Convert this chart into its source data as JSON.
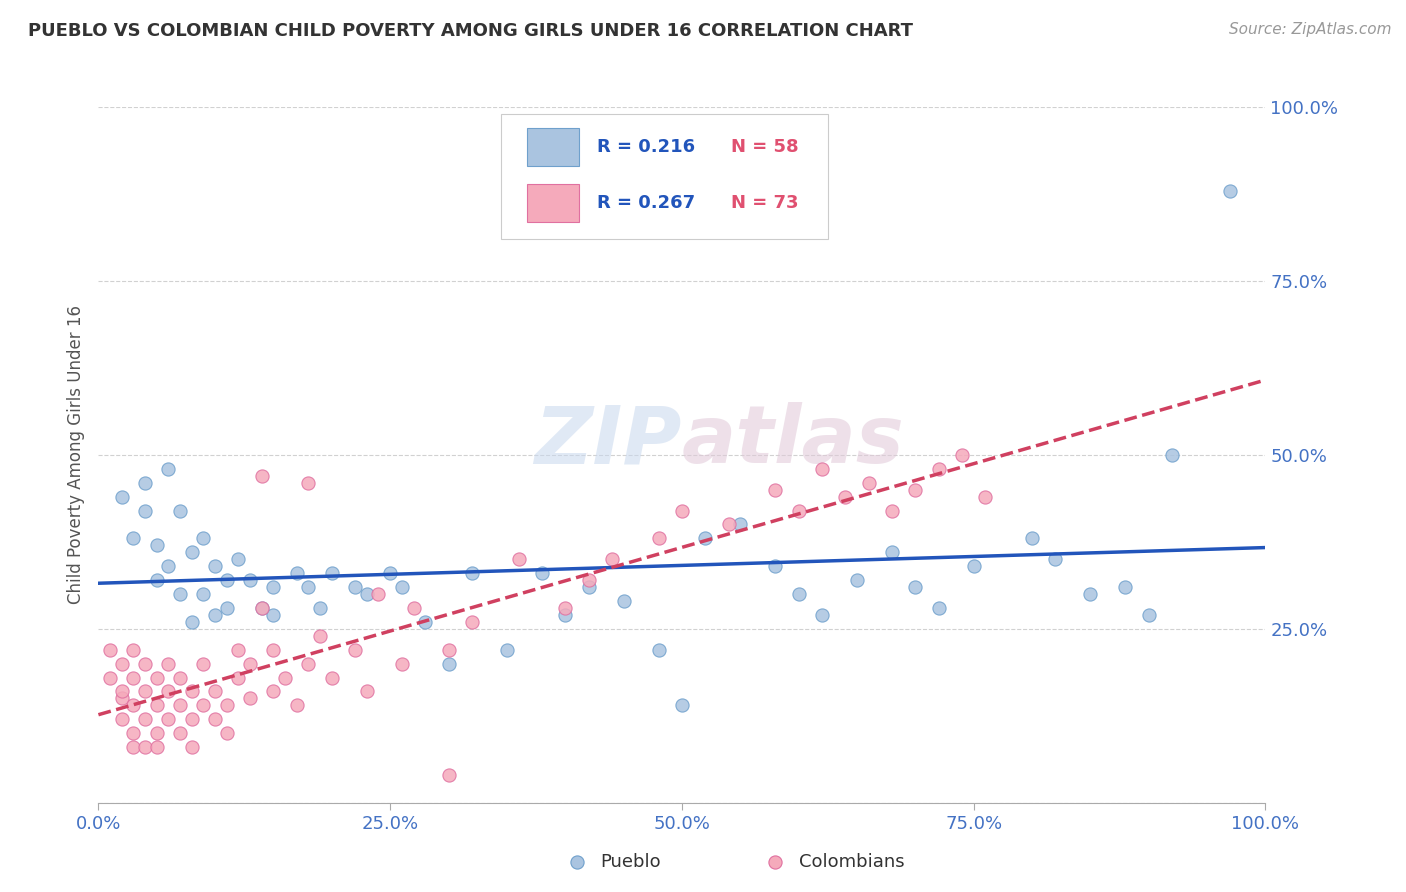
{
  "title": "PUEBLO VS COLOMBIAN CHILD POVERTY AMONG GIRLS UNDER 16 CORRELATION CHART",
  "source": "Source: ZipAtlas.com",
  "ylabel": "Child Poverty Among Girls Under 16",
  "xlim": [
    0.0,
    1.0
  ],
  "ylim": [
    0.0,
    1.0
  ],
  "xtick_vals": [
    0.0,
    0.25,
    0.5,
    0.75,
    1.0
  ],
  "ytick_vals": [
    0.0,
    0.25,
    0.5,
    0.75,
    1.0
  ],
  "pueblo_color": "#aac4e0",
  "colombian_color": "#f5aabb",
  "pueblo_edge": "#6fa0cc",
  "colombian_edge": "#e070a0",
  "trend_pueblo_color": "#2255bb",
  "trend_colombian_color": "#d04060",
  "legend_text_color": "#2255bb",
  "legend_n_color": "#e05070",
  "R_pueblo": 0.216,
  "N_pueblo": 58,
  "R_colombian": 0.267,
  "N_colombian": 73,
  "watermark": "ZIPatlas",
  "pueblo_scatter": [
    [
      0.02,
      0.44
    ],
    [
      0.03,
      0.38
    ],
    [
      0.04,
      0.46
    ],
    [
      0.04,
      0.42
    ],
    [
      0.05,
      0.37
    ],
    [
      0.05,
      0.32
    ],
    [
      0.06,
      0.34
    ],
    [
      0.06,
      0.48
    ],
    [
      0.07,
      0.42
    ],
    [
      0.07,
      0.3
    ],
    [
      0.08,
      0.26
    ],
    [
      0.08,
      0.36
    ],
    [
      0.09,
      0.38
    ],
    [
      0.09,
      0.3
    ],
    [
      0.1,
      0.34
    ],
    [
      0.1,
      0.27
    ],
    [
      0.11,
      0.32
    ],
    [
      0.11,
      0.28
    ],
    [
      0.12,
      0.35
    ],
    [
      0.13,
      0.32
    ],
    [
      0.14,
      0.28
    ],
    [
      0.15,
      0.31
    ],
    [
      0.15,
      0.27
    ],
    [
      0.17,
      0.33
    ],
    [
      0.18,
      0.31
    ],
    [
      0.19,
      0.28
    ],
    [
      0.2,
      0.33
    ],
    [
      0.22,
      0.31
    ],
    [
      0.23,
      0.3
    ],
    [
      0.25,
      0.33
    ],
    [
      0.26,
      0.31
    ],
    [
      0.28,
      0.26
    ],
    [
      0.3,
      0.2
    ],
    [
      0.32,
      0.33
    ],
    [
      0.35,
      0.22
    ],
    [
      0.38,
      0.33
    ],
    [
      0.4,
      0.27
    ],
    [
      0.42,
      0.31
    ],
    [
      0.45,
      0.29
    ],
    [
      0.48,
      0.22
    ],
    [
      0.5,
      0.14
    ],
    [
      0.52,
      0.38
    ],
    [
      0.55,
      0.4
    ],
    [
      0.58,
      0.34
    ],
    [
      0.6,
      0.3
    ],
    [
      0.62,
      0.27
    ],
    [
      0.65,
      0.32
    ],
    [
      0.68,
      0.36
    ],
    [
      0.7,
      0.31
    ],
    [
      0.72,
      0.28
    ],
    [
      0.75,
      0.34
    ],
    [
      0.8,
      0.38
    ],
    [
      0.82,
      0.35
    ],
    [
      0.85,
      0.3
    ],
    [
      0.88,
      0.31
    ],
    [
      0.9,
      0.27
    ],
    [
      0.92,
      0.5
    ],
    [
      0.97,
      0.88
    ]
  ],
  "colombian_scatter": [
    [
      0.01,
      0.18
    ],
    [
      0.01,
      0.22
    ],
    [
      0.02,
      0.15
    ],
    [
      0.02,
      0.2
    ],
    [
      0.02,
      0.12
    ],
    [
      0.02,
      0.16
    ],
    [
      0.03,
      0.18
    ],
    [
      0.03,
      0.14
    ],
    [
      0.03,
      0.1
    ],
    [
      0.03,
      0.22
    ],
    [
      0.03,
      0.08
    ],
    [
      0.04,
      0.16
    ],
    [
      0.04,
      0.12
    ],
    [
      0.04,
      0.08
    ],
    [
      0.04,
      0.2
    ],
    [
      0.05,
      0.14
    ],
    [
      0.05,
      0.18
    ],
    [
      0.05,
      0.1
    ],
    [
      0.05,
      0.08
    ],
    [
      0.06,
      0.12
    ],
    [
      0.06,
      0.16
    ],
    [
      0.06,
      0.2
    ],
    [
      0.07,
      0.14
    ],
    [
      0.07,
      0.1
    ],
    [
      0.07,
      0.18
    ],
    [
      0.08,
      0.12
    ],
    [
      0.08,
      0.16
    ],
    [
      0.08,
      0.08
    ],
    [
      0.09,
      0.14
    ],
    [
      0.09,
      0.2
    ],
    [
      0.1,
      0.12
    ],
    [
      0.1,
      0.16
    ],
    [
      0.11,
      0.1
    ],
    [
      0.11,
      0.14
    ],
    [
      0.12,
      0.18
    ],
    [
      0.12,
      0.22
    ],
    [
      0.13,
      0.15
    ],
    [
      0.13,
      0.2
    ],
    [
      0.14,
      0.28
    ],
    [
      0.14,
      0.47
    ],
    [
      0.15,
      0.22
    ],
    [
      0.15,
      0.16
    ],
    [
      0.16,
      0.18
    ],
    [
      0.17,
      0.14
    ],
    [
      0.18,
      0.2
    ],
    [
      0.18,
      0.46
    ],
    [
      0.19,
      0.24
    ],
    [
      0.2,
      0.18
    ],
    [
      0.22,
      0.22
    ],
    [
      0.23,
      0.16
    ],
    [
      0.24,
      0.3
    ],
    [
      0.26,
      0.2
    ],
    [
      0.27,
      0.28
    ],
    [
      0.3,
      0.22
    ],
    [
      0.32,
      0.26
    ],
    [
      0.36,
      0.35
    ],
    [
      0.4,
      0.28
    ],
    [
      0.42,
      0.32
    ],
    [
      0.44,
      0.35
    ],
    [
      0.48,
      0.38
    ],
    [
      0.5,
      0.42
    ],
    [
      0.54,
      0.4
    ],
    [
      0.58,
      0.45
    ],
    [
      0.6,
      0.42
    ],
    [
      0.62,
      0.48
    ],
    [
      0.64,
      0.44
    ],
    [
      0.66,
      0.46
    ],
    [
      0.68,
      0.42
    ],
    [
      0.7,
      0.45
    ],
    [
      0.72,
      0.48
    ],
    [
      0.74,
      0.5
    ],
    [
      0.76,
      0.44
    ],
    [
      0.3,
      0.04
    ]
  ]
}
